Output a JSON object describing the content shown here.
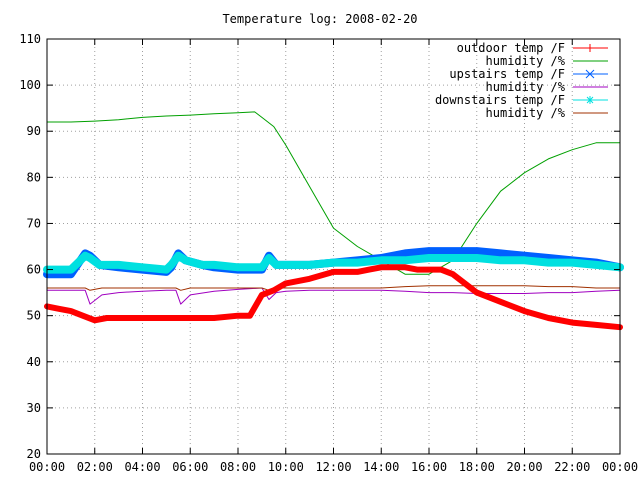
{
  "chart_data": {
    "type": "line",
    "title": "Temperature log: 2008-02-20",
    "xlabel": "",
    "ylabel": "",
    "xlim": [
      "00:00",
      "24:00"
    ],
    "ylim": [
      20,
      110
    ],
    "grid": true,
    "legend_position": "top-right",
    "x_ticks": [
      "00:00",
      "02:00",
      "04:00",
      "06:00",
      "08:00",
      "10:00",
      "12:00",
      "14:00",
      "16:00",
      "18:00",
      "20:00",
      "22:00",
      "00:00"
    ],
    "y_ticks": [
      "20",
      "30",
      "40",
      "50",
      "60",
      "70",
      "80",
      "90",
      "100",
      "110"
    ],
    "series": [
      {
        "name": "outdoor temp /F",
        "color": "#ff0000",
        "marker": "plus",
        "x": [
          0,
          0.5,
          1,
          1.5,
          2,
          2.5,
          3,
          3.5,
          4,
          5,
          6,
          7,
          8,
          8.5,
          9,
          9.5,
          10,
          11,
          12,
          13,
          13.5,
          14,
          14.5,
          15,
          15.5,
          16,
          16.5,
          17,
          17.5,
          18,
          19,
          20,
          21,
          22,
          23,
          24
        ],
        "values": [
          52,
          51.5,
          51,
          50,
          49,
          49.5,
          49.5,
          49.5,
          49.5,
          49.5,
          49.5,
          49.5,
          50,
          50,
          54.5,
          55.5,
          57,
          58,
          59.5,
          59.5,
          60,
          60.5,
          60.5,
          60.5,
          60,
          60,
          60,
          59,
          57,
          55,
          53,
          51,
          49.5,
          48.5,
          48,
          47.5
        ]
      },
      {
        "name": "humidity /%",
        "color": "#00a000",
        "marker": "none",
        "x": [
          0,
          1,
          2,
          3,
          4,
          5,
          6,
          7,
          8,
          8.7,
          9,
          9.5,
          10,
          11,
          12,
          13,
          14,
          15,
          16,
          17,
          18,
          19,
          20,
          21,
          22,
          23,
          24
        ],
        "values": [
          92,
          92,
          92.2,
          92.5,
          93,
          93.3,
          93.5,
          93.8,
          94,
          94.2,
          93,
          91,
          87,
          78,
          69,
          65,
          62,
          59,
          59,
          62,
          70,
          77,
          81,
          84,
          86,
          87.5,
          87.5
        ]
      },
      {
        "name": "upstairs temp /F",
        "color": "#0060ff",
        "marker": "x",
        "x": [
          0,
          1,
          1.6,
          1.8,
          2.2,
          3,
          4,
          5,
          5.2,
          5.5,
          5.8,
          6.5,
          7,
          8,
          9,
          9.3,
          9.6,
          10,
          11,
          12,
          13,
          14,
          15,
          16,
          17,
          18,
          19,
          20,
          21,
          22,
          23,
          24
        ],
        "values": [
          59,
          59,
          63.5,
          63,
          61,
          60.5,
          60,
          59.5,
          60.5,
          63.5,
          62,
          61,
          60.5,
          60,
          60,
          63,
          61,
          61,
          61,
          61.5,
          62,
          62.5,
          63.5,
          64,
          64,
          64,
          63.5,
          63,
          62.5,
          62,
          61.5,
          60.5
        ]
      },
      {
        "name": "humidity /%",
        "color": "#a000c0",
        "marker": "none",
        "x": [
          0,
          1,
          1.6,
          1.8,
          2.3,
          3,
          4,
          5,
          5.4,
          5.6,
          6,
          7,
          8,
          9,
          9.3,
          9.6,
          10,
          11,
          12,
          13,
          14,
          15,
          16,
          17,
          18,
          19,
          20,
          21,
          22,
          23,
          24
        ],
        "values": [
          55.5,
          55.5,
          55.5,
          52.5,
          54.5,
          55,
          55.3,
          55.5,
          55.5,
          52.5,
          54.5,
          55.3,
          55.7,
          56,
          53.5,
          55,
          55.3,
          55.5,
          55.5,
          55.5,
          55.5,
          55.3,
          55,
          55,
          54.8,
          54.8,
          54.8,
          55,
          55,
          55.3,
          55.5
        ]
      },
      {
        "name": "downstairs temp /F",
        "color": "#00e0e0",
        "marker": "star",
        "x": [
          0,
          1,
          1.6,
          1.8,
          2.2,
          3,
          4,
          5,
          5.2,
          5.5,
          5.8,
          6.5,
          7,
          8,
          9,
          9.3,
          9.6,
          10,
          11,
          12,
          13,
          14,
          15,
          16,
          17,
          18,
          19,
          20,
          21,
          22,
          23,
          24
        ],
        "values": [
          60,
          60,
          63,
          62.5,
          61,
          61,
          60.5,
          60,
          61,
          63,
          62,
          61,
          61,
          60.5,
          60.5,
          62.5,
          61,
          61,
          61,
          61.5,
          61.5,
          62,
          62,
          62.5,
          62.5,
          62.5,
          62,
          62,
          61.5,
          61.5,
          61,
          60.5
        ]
      },
      {
        "name": "humidity /%",
        "color": "#a03000",
        "marker": "none",
        "x": [
          0,
          1,
          1.6,
          1.8,
          2.3,
          3,
          4,
          5,
          5.4,
          5.6,
          6,
          7,
          8,
          9,
          9.3,
          9.6,
          10,
          11,
          12,
          13,
          14,
          15,
          16,
          17,
          18,
          19,
          20,
          21,
          22,
          23,
          24
        ],
        "values": [
          56,
          56,
          56,
          55.5,
          56,
          56,
          56,
          56,
          56,
          55.5,
          56,
          56,
          56,
          56,
          55.5,
          56,
          56,
          56,
          56,
          56,
          56,
          56.3,
          56.5,
          56.5,
          56.5,
          56.5,
          56.5,
          56.3,
          56.3,
          56,
          56
        ]
      }
    ]
  }
}
